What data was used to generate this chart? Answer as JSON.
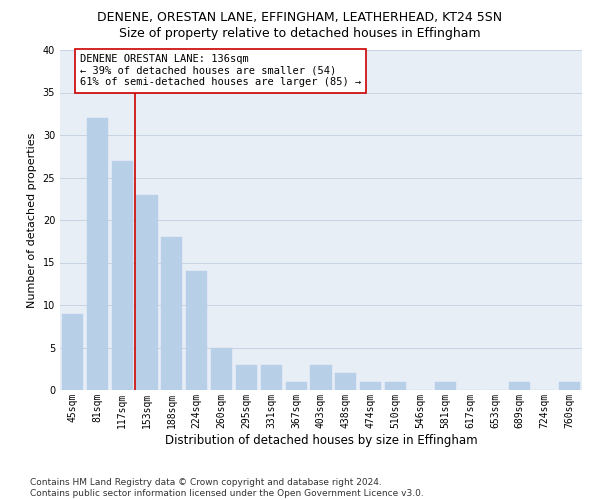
{
  "title": "DENENE, ORESTAN LANE, EFFINGHAM, LEATHERHEAD, KT24 5SN",
  "subtitle": "Size of property relative to detached houses in Effingham",
  "xlabel": "Distribution of detached houses by size in Effingham",
  "ylabel": "Number of detached properties",
  "bar_labels": [
    "45sqm",
    "81sqm",
    "117sqm",
    "153sqm",
    "188sqm",
    "224sqm",
    "260sqm",
    "295sqm",
    "331sqm",
    "367sqm",
    "403sqm",
    "438sqm",
    "474sqm",
    "510sqm",
    "546sqm",
    "581sqm",
    "617sqm",
    "653sqm",
    "689sqm",
    "724sqm",
    "760sqm"
  ],
  "bar_values": [
    9,
    32,
    27,
    23,
    18,
    14,
    5,
    3,
    3,
    1,
    3,
    2,
    1,
    1,
    0,
    1,
    0,
    0,
    1,
    0,
    1
  ],
  "bar_color": "#b8cfe8",
  "grid_color": "#c8d4e4",
  "background_color": "#e8eef6",
  "vline_x": 2.5,
  "vline_color": "#cc0000",
  "annotation_text": "DENENE ORESTAN LANE: 136sqm\n← 39% of detached houses are smaller (54)\n61% of semi-detached houses are larger (85) →",
  "annotation_box_color": "white",
  "annotation_box_edge": "#cc0000",
  "ylim": [
    0,
    40
  ],
  "yticks": [
    0,
    5,
    10,
    15,
    20,
    25,
    30,
    35,
    40
  ],
  "footnote": "Contains HM Land Registry data © Crown copyright and database right 2024.\nContains public sector information licensed under the Open Government Licence v3.0.",
  "title_fontsize": 9,
  "subtitle_fontsize": 9,
  "xlabel_fontsize": 8.5,
  "ylabel_fontsize": 8,
  "tick_fontsize": 7,
  "annotation_fontsize": 7.5,
  "footnote_fontsize": 6.5
}
